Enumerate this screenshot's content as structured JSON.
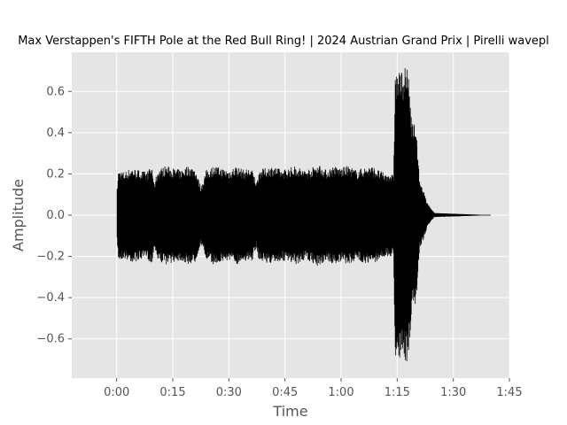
{
  "chart_data": {
    "type": "line",
    "title": "Max Verstappen's FIFTH Pole at the Red Bull Ring! | 2024 Austrian Grand Prix | Pirelli wavepl",
    "xlabel": "Time",
    "ylabel": "Amplitude",
    "xlim": [
      -12,
      105
    ],
    "ylim": [
      -0.79,
      0.79
    ],
    "x_ticks": [
      0,
      15,
      30,
      45,
      60,
      75,
      90,
      105
    ],
    "x_tick_labels": [
      "0:00",
      "0:15",
      "0:30",
      "0:45",
      "1:00",
      "1:15",
      "1:30",
      "1:45"
    ],
    "y_ticks": [
      -0.6,
      -0.4,
      -0.2,
      0.0,
      0.2,
      0.4,
      0.6
    ],
    "y_tick_labels": [
      "−0.6",
      "−0.4",
      "−0.2",
      "0.0",
      "0.2",
      "0.4",
      "0.6"
    ],
    "grid": true,
    "series": [
      {
        "x": [
          0,
          0.5,
          2,
          4,
          6,
          8,
          9.5,
          10,
          11,
          13,
          15,
          17,
          19,
          21,
          22.5,
          24,
          26,
          28,
          30,
          32,
          34,
          36,
          37.5,
          38,
          40,
          42,
          44,
          46,
          48,
          50,
          52,
          54,
          56,
          58,
          60,
          62,
          64,
          66,
          68,
          70,
          72,
          73,
          74,
          74.5,
          75,
          76,
          77,
          78,
          79,
          80,
          81,
          82,
          83,
          84,
          85,
          100
        ],
        "y": [
          0.1,
          0.22,
          0.21,
          0.23,
          0.22,
          0.21,
          0.24,
          0.15,
          0.22,
          0.24,
          0.23,
          0.22,
          0.24,
          0.23,
          0.14,
          0.22,
          0.24,
          0.23,
          0.22,
          0.24,
          0.22,
          0.23,
          0.16,
          0.22,
          0.23,
          0.24,
          0.22,
          0.23,
          0.24,
          0.22,
          0.23,
          0.25,
          0.22,
          0.24,
          0.23,
          0.24,
          0.22,
          0.23,
          0.24,
          0.22,
          0.2,
          0.21,
          0.19,
          0.7,
          0.69,
          0.7,
          0.72,
          0.7,
          0.45,
          0.45,
          0.16,
          0.12,
          0.06,
          0.03,
          0.01,
          0.0
        ],
        "symmetric": true,
        "color": "#000000"
      }
    ]
  }
}
